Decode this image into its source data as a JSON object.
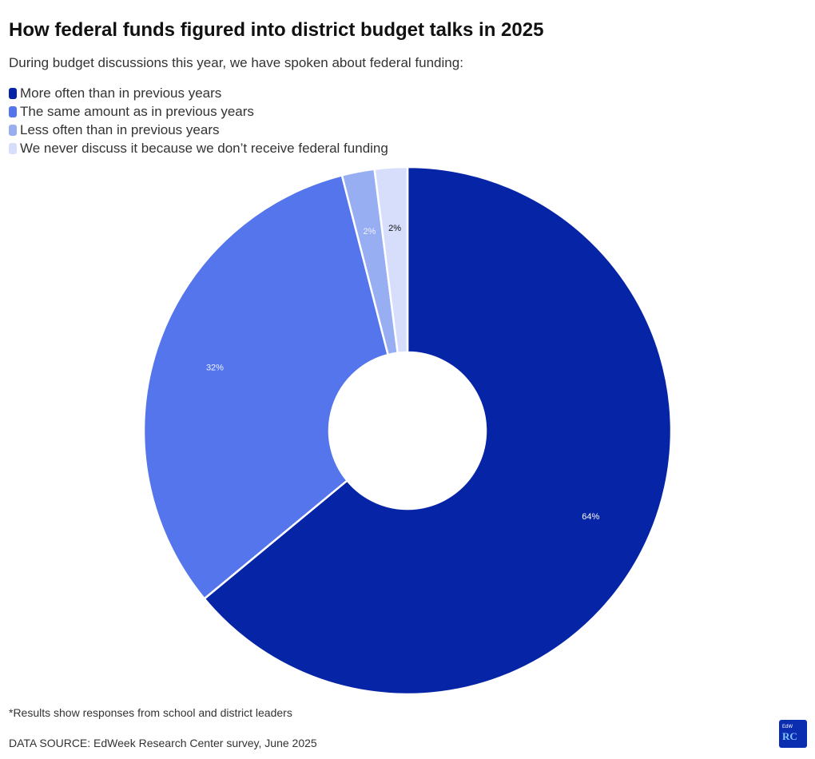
{
  "title": "How federal funds figured into district budget talks in 2025",
  "subtitle": "During budget discussions this year, we have spoken about federal funding:",
  "footnote": "*Results show responses from school and district leaders",
  "source": "DATA SOURCE: EdWeek Research Center survey, June 2025",
  "logo": {
    "small_text": "EdW",
    "big_text": "RC"
  },
  "chart_data": {
    "type": "pie",
    "donut": true,
    "legend_position": "top-left",
    "categories": [
      "More often than in previous years",
      "The same amount as in previous years",
      "Less often than in previous years",
      "We never discuss it because we don’t receive federal funding"
    ],
    "values": [
      64,
      32,
      2,
      2
    ],
    "labels": [
      "64%",
      "32%",
      "2%",
      "2%"
    ],
    "colors": [
      "#0624a6",
      "#5575ec",
      "#98aef3",
      "#d6defb"
    ],
    "label_colors": [
      "#ffffff",
      "#eef2ff",
      "#eef2ff",
      "#111111"
    ]
  }
}
